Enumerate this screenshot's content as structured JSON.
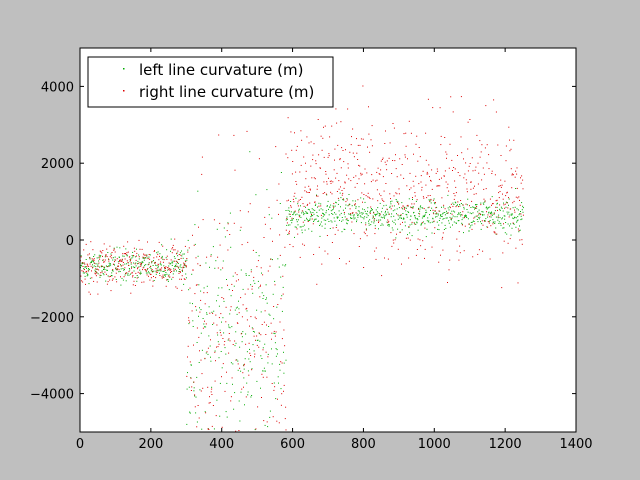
{
  "chart_data": {
    "type": "scatter",
    "title": "",
    "xlabel": "",
    "ylabel": "",
    "xlim": [
      0,
      1400
    ],
    "ylim": [
      -5000,
      5000
    ],
    "xticks": [
      0,
      200,
      400,
      600,
      800,
      1000,
      1200,
      1400
    ],
    "yticks": [
      -4000,
      -2000,
      0,
      2000,
      4000
    ],
    "xtick_labels": [
      "0",
      "200",
      "400",
      "600",
      "800",
      "1000",
      "1200",
      "1400"
    ],
    "ytick_labels": [
      "−4000",
      "−2000",
      "0",
      "2000",
      "4000"
    ],
    "grid": false,
    "legend": "top-left",
    "series": [
      {
        "name": "left line curvature (m)",
        "color": "#00aa00",
        "segments": [
          {
            "x": [
              0,
              300
            ],
            "median": -650,
            "spread": 180
          },
          {
            "x": [
              300,
              580
            ],
            "median": -2600,
            "spread": 1500
          },
          {
            "x": [
              580,
              1250
            ],
            "median": 650,
            "spread": 200
          }
        ]
      },
      {
        "name": "right line curvature (m)",
        "color": "#dd0000",
        "segments": [
          {
            "x": [
              0,
              300
            ],
            "median": -650,
            "spread": 250
          },
          {
            "x": [
              300,
              580
            ],
            "median": -2500,
            "spread": 1800
          },
          {
            "x": [
              580,
              1250
            ],
            "median": 1200,
            "spread": 900
          }
        ]
      }
    ]
  }
}
